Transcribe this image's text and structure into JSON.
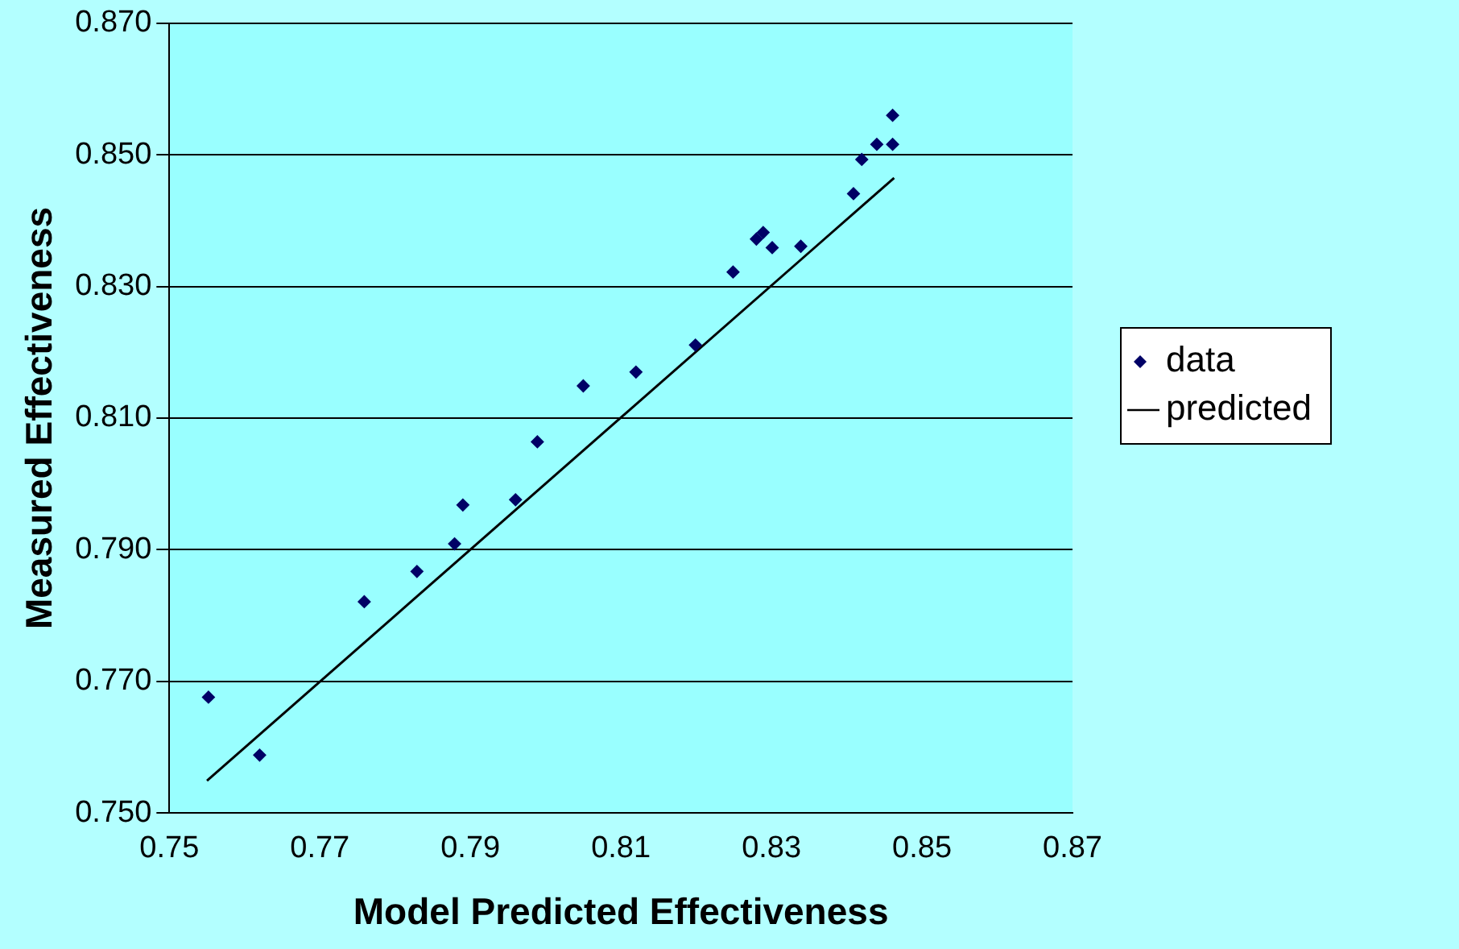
{
  "chart_data": {
    "type": "scatter",
    "xlabel": "Model Predicted Effectiveness",
    "ylabel": "Measured Effectiveness",
    "xlim": [
      0.75,
      0.87
    ],
    "xticks": [
      {
        "value": 0.75,
        "label": "0.75"
      },
      {
        "value": 0.77,
        "label": "0.77"
      },
      {
        "value": 0.79,
        "label": "0.79"
      },
      {
        "value": 0.81,
        "label": "0.81"
      },
      {
        "value": 0.83,
        "label": "0.83"
      },
      {
        "value": 0.85,
        "label": "0.85"
      },
      {
        "value": 0.87,
        "label": "0.87"
      }
    ],
    "ylim": [
      0.75,
      0.87
    ],
    "yticks": [
      {
        "value": 0.75,
        "label": "0.750"
      },
      {
        "value": 0.77,
        "label": "0.770"
      },
      {
        "value": 0.79,
        "label": "0.790"
      },
      {
        "value": 0.81,
        "label": "0.810"
      },
      {
        "value": 0.83,
        "label": "0.830"
      },
      {
        "value": 0.85,
        "label": "0.850"
      },
      {
        "value": 0.87,
        "label": "0.870"
      }
    ],
    "grid": "y",
    "legend": "right",
    "marker": "diamond",
    "series": [
      {
        "name": "data",
        "color": "#000066",
        "x": [
          0.7552,
          0.762,
          0.7759,
          0.7829,
          0.7879,
          0.789,
          0.796,
          0.7989,
          0.805,
          0.812,
          0.8199,
          0.8249,
          0.828,
          0.8289,
          0.8301,
          0.8339,
          0.8409,
          0.842,
          0.844,
          0.8461,
          0.8461
        ],
        "values": [
          0.7676,
          0.7588,
          0.7821,
          0.7867,
          0.7909,
          0.7968,
          0.7976,
          0.8064,
          0.8149,
          0.817,
          0.8211,
          0.8322,
          0.8372,
          0.8382,
          0.8359,
          0.8361,
          0.8441,
          0.8493,
          0.8516,
          0.8516,
          0.856
        ]
      },
      {
        "name": "predicted",
        "type": "line",
        "color": "#000000",
        "marker": "none",
        "x": [
          0.755,
          0.8463
        ],
        "values": [
          0.7549,
          0.8465
        ]
      }
    ]
  }
}
